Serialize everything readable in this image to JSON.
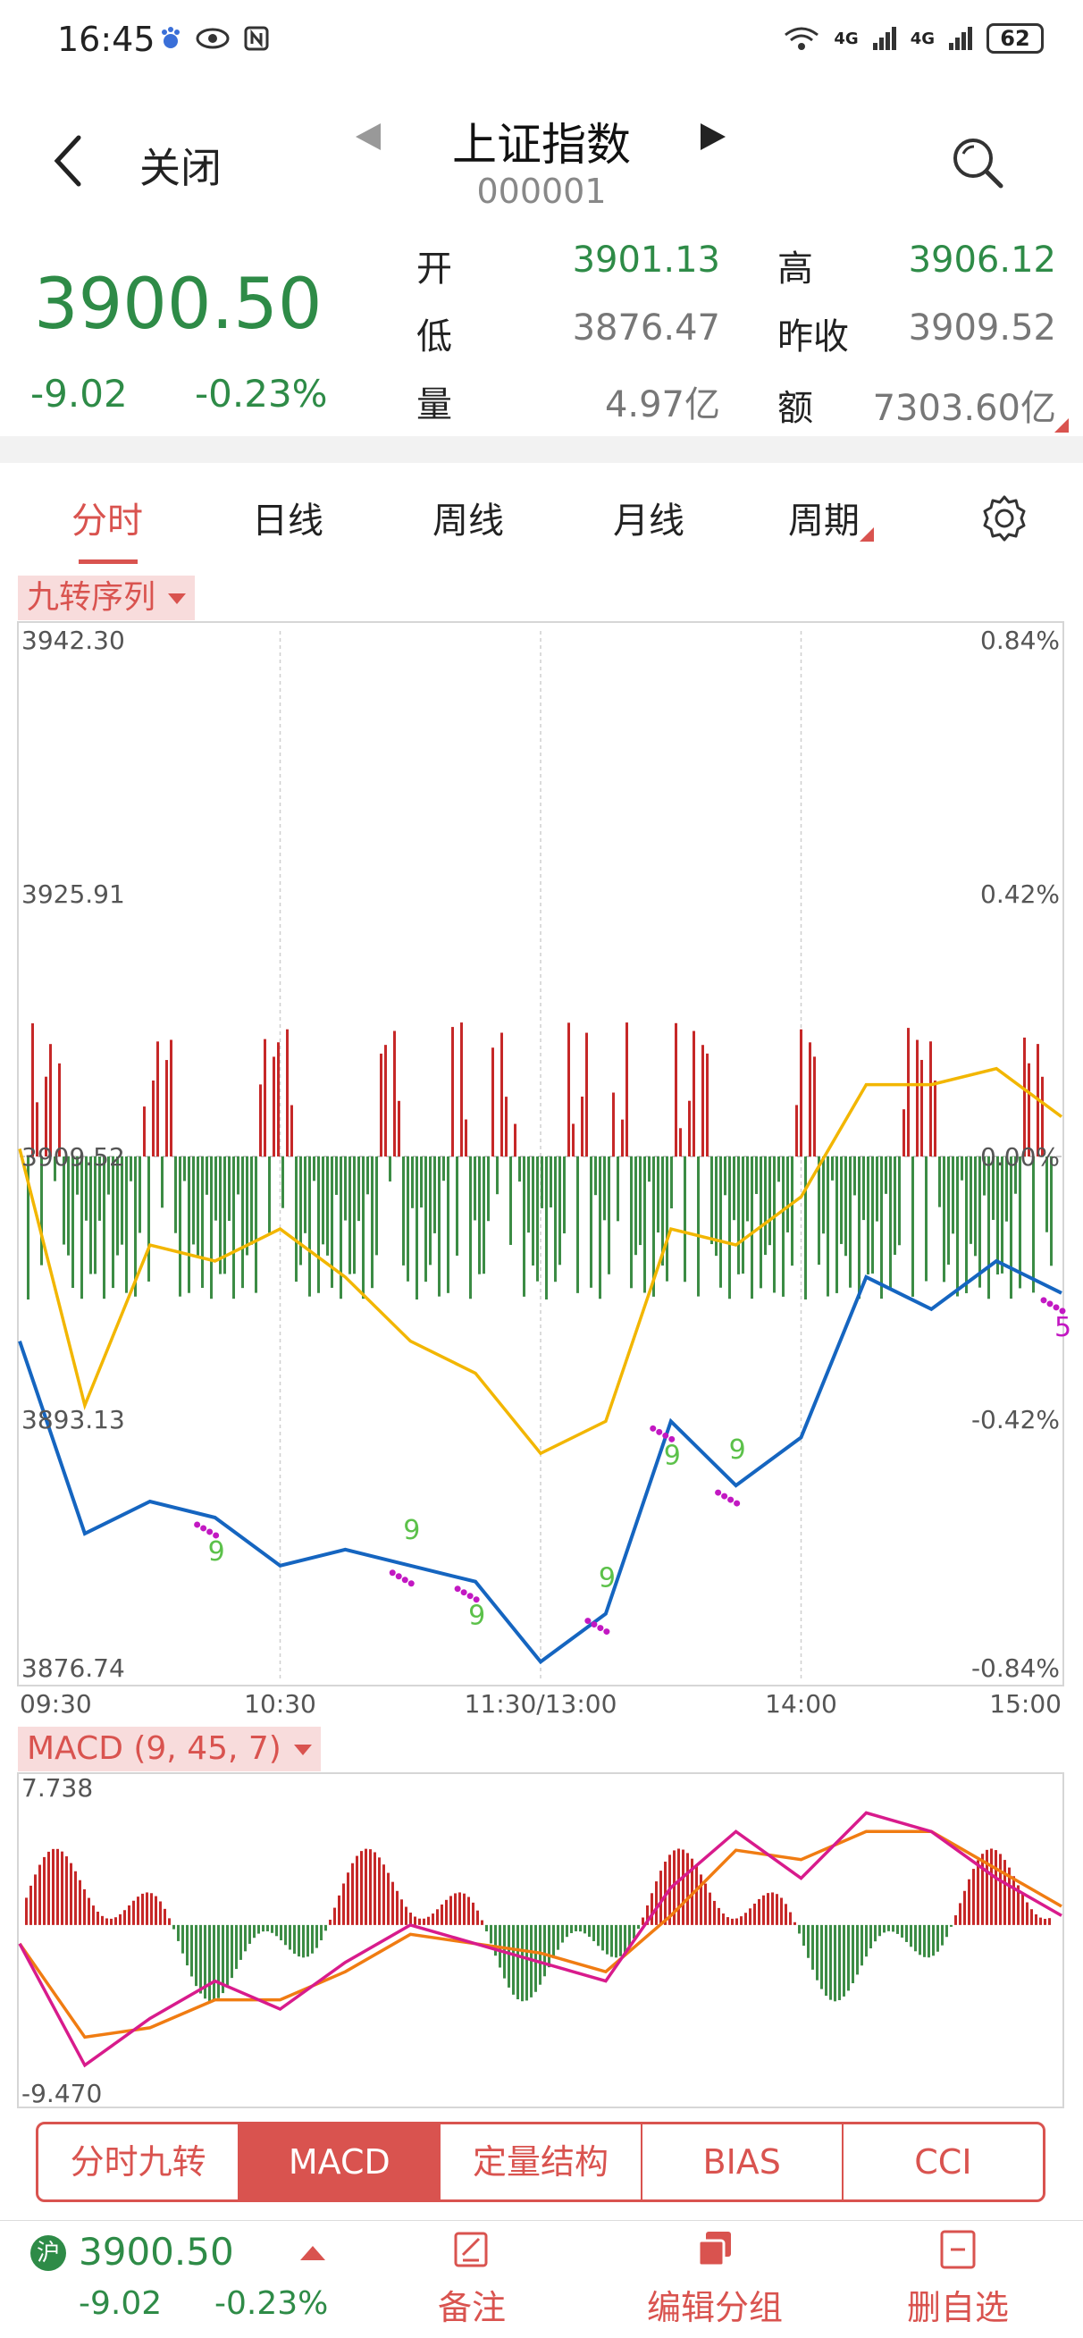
{
  "status_bar": {
    "time": "16:45",
    "signal_left": "4G",
    "signal_right": "4G",
    "battery": "62"
  },
  "header": {
    "back_label": "关闭",
    "title": "上证指数",
    "code": "000001"
  },
  "quote": {
    "price": "3900.50",
    "change": "-9.02",
    "change_pct": "-0.23%",
    "open_label": "开",
    "open": "3901.13",
    "high_label": "高",
    "high": "3906.12",
    "low_label": "低",
    "low": "3876.47",
    "prev_close_label": "昨收",
    "prev_close": "3909.52",
    "volume_label": "量",
    "volume": "4.97亿",
    "amount_label": "额",
    "amount": "7303.60亿"
  },
  "period_tabs": [
    "分时",
    "日线",
    "周线",
    "月线",
    "周期"
  ],
  "main_chart": {
    "indicator_label": "九转序列",
    "y_left": [
      "3942.30",
      "3925.91",
      "3909.52",
      "3893.13",
      "3876.74"
    ],
    "y_right": [
      "0.84%",
      "0.42%",
      "0.00%",
      "-0.42%",
      "-0.84%"
    ],
    "x_labels": [
      "09:30",
      "10:30",
      "11:30/13:00",
      "14:00",
      "15:00"
    ],
    "nine_marks": [
      "9",
      "9",
      "9",
      "9",
      "9",
      "9",
      "5"
    ]
  },
  "macd_chart": {
    "label": "MACD (9, 45, 7)",
    "y_top": "7.738",
    "y_bottom": "-9.470"
  },
  "indicator_tabs": [
    "分时九转",
    "MACD",
    "定量结构",
    "BIAS",
    "CCI"
  ],
  "footer": {
    "market_badge": "沪",
    "price": "3900.50",
    "change": "-9.02",
    "change_pct": "-0.23%",
    "actions": [
      "备注",
      "编辑分组",
      "删自选"
    ]
  },
  "colors": {
    "up": "#d9534f",
    "down": "#2e8b47",
    "price_line": "#1565c0",
    "avg_line": "#f2b600",
    "macd_dif": "#d81b8c",
    "macd_dea": "#f07c12"
  },
  "chart_data": [
    {
      "type": "line",
      "title": "上证指数 分时",
      "x": [
        "09:30",
        "09:45",
        "10:00",
        "10:15",
        "10:30",
        "10:45",
        "11:00",
        "11:15",
        "11:30/13:00",
        "13:15",
        "13:30",
        "13:45",
        "14:00",
        "14:15",
        "14:30",
        "14:45",
        "15:00"
      ],
      "series": [
        {
          "name": "price",
          "values": [
            3898,
            3886,
            3888,
            3887,
            3884,
            3885,
            3884,
            3883,
            3878,
            3881,
            3893,
            3889,
            3892,
            3902,
            3900,
            3903,
            3901
          ]
        },
        {
          "name": "avg",
          "values": [
            3910,
            3894,
            3904,
            3903,
            3905,
            3902,
            3898,
            3896,
            3891,
            3893,
            3905,
            3904,
            3907,
            3914,
            3914,
            3915,
            3912
          ]
        }
      ],
      "ylim": [
        3876.74,
        3942.3
      ],
      "yref": 3909.52
    },
    {
      "type": "bar",
      "title": "MACD (9, 45, 7)",
      "ylim": [
        -9.47,
        7.738
      ],
      "x": [
        "09:30",
        "09:45",
        "10:00",
        "10:15",
        "10:30",
        "10:45",
        "11:00",
        "11:15",
        "11:30/13:00",
        "13:15",
        "13:30",
        "13:45",
        "14:00",
        "14:15",
        "14:30",
        "14:45",
        "15:00"
      ],
      "series": [
        {
          "name": "DIF",
          "values": [
            -1.0,
            -7.5,
            -5.0,
            -3.0,
            -4.5,
            -2.0,
            0.0,
            -1.0,
            -2.0,
            -3.0,
            2.0,
            5.0,
            2.5,
            6.0,
            5.0,
            2.5,
            0.5
          ]
        },
        {
          "name": "DEA",
          "values": [
            -1.0,
            -6.0,
            -5.5,
            -4.0,
            -4.0,
            -2.5,
            -0.5,
            -1.0,
            -1.5,
            -2.5,
            0.5,
            4.0,
            3.5,
            5.0,
            5.0,
            3.0,
            1.0
          ]
        }
      ]
    }
  ]
}
